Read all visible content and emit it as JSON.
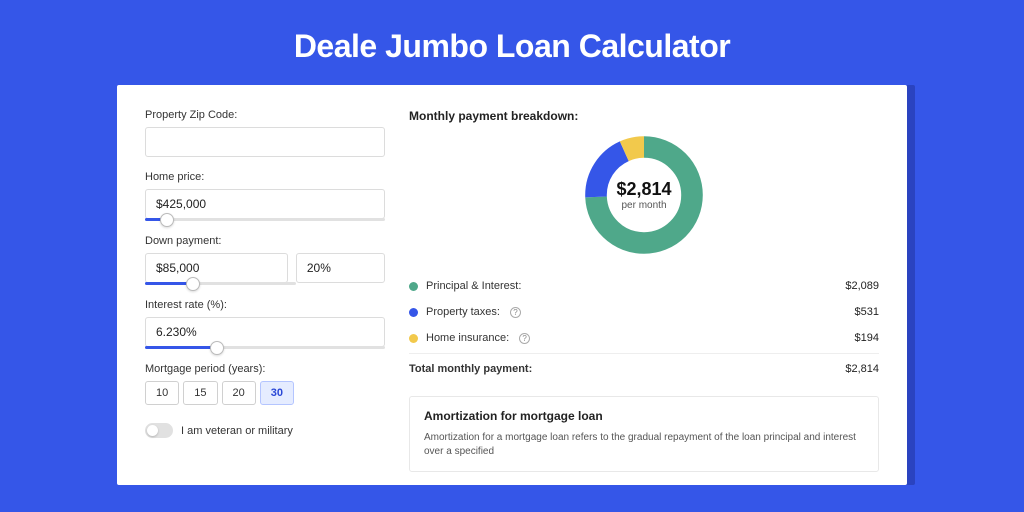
{
  "page": {
    "title": "Deale Jumbo Loan Calculator",
    "background_color": "#3556e8",
    "accent_shadow": "#2a43c0"
  },
  "form": {
    "zip": {
      "label": "Property Zip Code:",
      "value": ""
    },
    "home_price": {
      "label": "Home price:",
      "value": "$425,000",
      "slider_percent": 9
    },
    "down_payment": {
      "label": "Down payment:",
      "amount": "$85,000",
      "percent": "20%",
      "slider_percent": 20
    },
    "interest_rate": {
      "label": "Interest rate (%):",
      "value": "6.230%",
      "slider_percent": 30
    },
    "mortgage_period": {
      "label": "Mortgage period (years):",
      "options": [
        "10",
        "15",
        "20",
        "30"
      ],
      "selected": "30"
    },
    "veteran": {
      "label": "I am veteran or military",
      "checked": false
    }
  },
  "breakdown": {
    "title": "Monthly payment breakdown:",
    "center_amount": "$2,814",
    "center_sub": "per month",
    "donut": {
      "stroke_width": 18,
      "slices": [
        {
          "key": "principal_interest",
          "color": "#4fa88a",
          "value": 2089
        },
        {
          "key": "property_taxes",
          "color": "#3556e8",
          "value": 531
        },
        {
          "key": "home_insurance",
          "color": "#f2c94c",
          "value": 194
        }
      ],
      "background": "#ffffff"
    },
    "items": [
      {
        "label": "Principal & Interest:",
        "color": "#4fa88a",
        "value": "$2,089",
        "info": false
      },
      {
        "label": "Property taxes:",
        "color": "#3556e8",
        "value": "$531",
        "info": true
      },
      {
        "label": "Home insurance:",
        "color": "#f2c94c",
        "value": "$194",
        "info": true
      }
    ],
    "total": {
      "label": "Total monthly payment:",
      "value": "$2,814"
    }
  },
  "amortization": {
    "title": "Amortization for mortgage loan",
    "text": "Amortization for a mortgage loan refers to the gradual repayment of the loan principal and interest over a specified"
  }
}
